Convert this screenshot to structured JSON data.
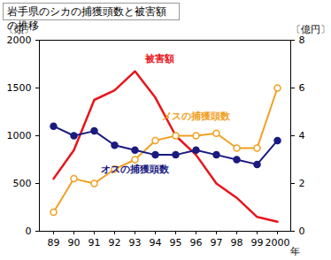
{
  "chart_data": {
    "type": "line",
    "title": "岩手県のシカの捕獲頭数と被害額の推移",
    "x_label": "年",
    "y_label": "〔頭〕",
    "y2_label": "〔億円〕",
    "categories": [
      "89",
      "90",
      "91",
      "92",
      "93",
      "94",
      "95",
      "96",
      "97",
      "98",
      "99",
      "2000"
    ],
    "ylim": [
      0,
      2000
    ],
    "yticks": [
      0,
      500,
      1000,
      1500,
      2000
    ],
    "y2lim": [
      0,
      8
    ],
    "y2ticks": [
      0,
      2,
      4,
      6,
      8
    ],
    "grid": false,
    "series": [
      {
        "name": "被害額",
        "color": "#e8141b",
        "axis": "y2",
        "marker": "none",
        "values": [
          2.2,
          3.4,
          5.5,
          5.9,
          6.7,
          5.6,
          4.0,
          3.2,
          2.0,
          1.4,
          0.6,
          0.4
        ]
      },
      {
        "name": "メスの捕獲頭数",
        "color": "#f0a020",
        "marker": "hollow",
        "values": [
          200,
          550,
          500,
          650,
          750,
          950,
          1000,
          1000,
          1025,
          870,
          870,
          1500
        ]
      },
      {
        "name": "オスの捕獲頭数",
        "color": "#1a1a80",
        "marker": "circle",
        "values": [
          1100,
          1000,
          1050,
          900,
          850,
          800,
          800,
          850,
          800,
          750,
          700,
          950
        ]
      }
    ]
  }
}
